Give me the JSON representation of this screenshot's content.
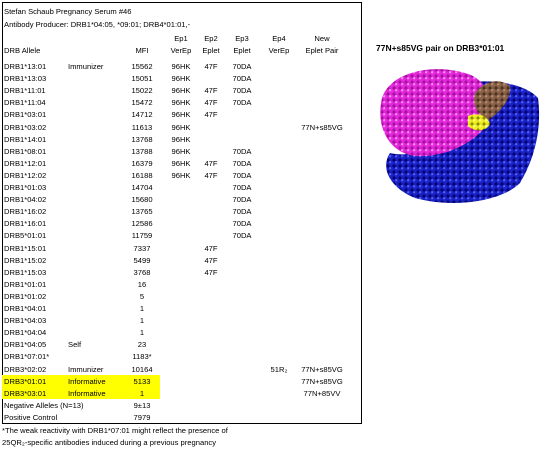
{
  "header": {
    "title": "Stefan Schaub Pregnancy Serum #46",
    "subtitle": "Antibody Producer: DRB1*04:05, *09:01; DRB4*01:01,-"
  },
  "table": {
    "group_headers": {
      "ep1": "Ep1",
      "ep2": "Ep2",
      "ep3": "Ep3",
      "ep4": "Ep4",
      "new": "New"
    },
    "headers": {
      "allele": "DRB Allele",
      "mfi": "MFI",
      "ep1": "VerEp",
      "ep2": "Eplet",
      "ep3": "Eplet",
      "ep4": "VerEp",
      "new": "Eplet Pair"
    },
    "rows": [
      {
        "allele": "DRB1*13:01",
        "note": "Immunizer",
        "mfi": 15562,
        "ep1": "96HK",
        "ep2": "47F",
        "ep3": "70DA"
      },
      {
        "allele": "DRB1*13:03",
        "mfi": 15051,
        "ep1": "96HK",
        "ep3": "70DA"
      },
      {
        "allele": "DRB1*11:01",
        "mfi": 15022,
        "ep1": "96HK",
        "ep2": "47F",
        "ep3": "70DA"
      },
      {
        "allele": "DRB1*11:04",
        "mfi": 15472,
        "ep1": "96HK",
        "ep2": "47F",
        "ep3": "70DA"
      },
      {
        "allele": "DRB1*03:01",
        "mfi": 14712,
        "ep1": "96HK",
        "ep2": "47F"
      },
      {
        "allele": "DRB1*03:02",
        "mfi": 11613,
        "ep1": "96HK",
        "new": "77N+s85VG"
      },
      {
        "allele": "DRB1*14:01",
        "mfi": 13768,
        "ep1": "96HK"
      },
      {
        "allele": "DRB1*08:01",
        "mfi": 13788,
        "ep1": "96HK",
        "ep3": "70DA"
      },
      {
        "allele": "DRB1*12:01",
        "mfi": 16379,
        "ep1": "96HK",
        "ep2": "47F",
        "ep3": "70DA"
      },
      {
        "allele": "DRB1*12:02",
        "mfi": 16188,
        "ep1": "96HK",
        "ep2": "47F",
        "ep3": "70DA"
      },
      {
        "allele": "DRB1*01:03",
        "mfi": 14704,
        "ep3": "70DA"
      },
      {
        "allele": "DRB1*04:02",
        "mfi": 15680,
        "ep3": "70DA"
      },
      {
        "allele": "DRB1*16:02",
        "mfi": 13765,
        "ep3": "70DA"
      },
      {
        "allele": "DRB1*16:01",
        "mfi": 12586,
        "ep3": "70DA"
      },
      {
        "allele": "DRB5*01:01",
        "mfi": 11759,
        "ep3": "70DA"
      },
      {
        "allele": "DRB1*15:01",
        "mfi": 7337,
        "ep2": "47F"
      },
      {
        "allele": "DRB1*15:02",
        "mfi": 5499,
        "ep2": "47F"
      },
      {
        "allele": "DRB1*15:03",
        "mfi": 3768,
        "ep2": "47F"
      },
      {
        "allele": "DRB1*01:01",
        "mfi": 16
      },
      {
        "allele": "DRB1*01:02",
        "mfi": 5
      },
      {
        "allele": "DRB1*04:01",
        "mfi": 1
      },
      {
        "allele": "DRB1*04:03",
        "mfi": 1
      },
      {
        "allele": "DRB1*04:04",
        "mfi": 1
      },
      {
        "allele": "DRB1*04:05",
        "note": "Self",
        "mfi": 23
      },
      {
        "allele": "DRB1*07:01*",
        "mfi": "1183*"
      },
      {
        "allele": "DRB3*02:02",
        "note": "Immunizer",
        "mfi": 10164,
        "ep4": "51R₂",
        "new": "77N+s85VG"
      },
      {
        "allele": "DRB3*01:01",
        "note": "Informative",
        "mfi": 5133,
        "new": "77N+s85VG",
        "highlighted": true
      },
      {
        "allele": "DRB3*03:01",
        "note": "Informative",
        "mfi": 1,
        "new": "77N+85VV",
        "highlighted": true
      },
      {
        "allele": "Negative Alleles (N=13)",
        "mfi": "9±13"
      },
      {
        "allele": "Positive Control",
        "mfi": 7979
      }
    ]
  },
  "footnote": [
    "*The weak reactivity with DRB1*07:01 might reflect the presence of",
    "25QR₂-specific antibodies induced during a previous pregnancy"
  ],
  "figure": {
    "caption": "77N+s85VG pair on DRB3*01:01"
  }
}
